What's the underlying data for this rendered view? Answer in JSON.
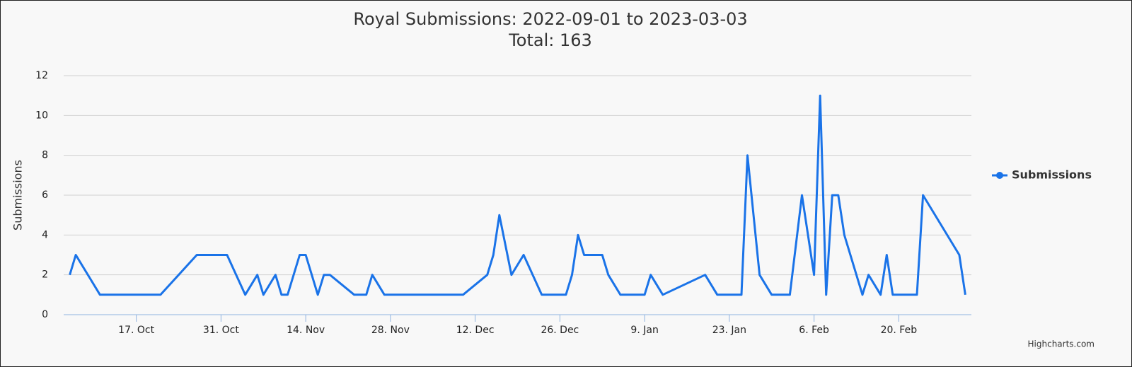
{
  "chart_data": {
    "type": "line",
    "title": "Royal Submissions: 2022-09-01 to 2023-03-03",
    "subtitle": "Total: 163",
    "y_label": "Submissions",
    "credits": "Highcharts.com",
    "grid": true,
    "legend": "right",
    "xlim": [
      "2022-10-05",
      "2023-03-04"
    ],
    "ylim": [
      0,
      12
    ],
    "yticks": [
      0,
      2,
      4,
      6,
      8,
      10,
      12
    ],
    "xticks": [
      {
        "value": "2022-10-17",
        "label": "17. Oct"
      },
      {
        "value": "2022-10-31",
        "label": "31. Oct"
      },
      {
        "value": "2022-11-14",
        "label": "14. Nov"
      },
      {
        "value": "2022-11-28",
        "label": "28. Nov"
      },
      {
        "value": "2022-12-12",
        "label": "12. Dec"
      },
      {
        "value": "2022-12-26",
        "label": "26. Dec"
      },
      {
        "value": "2023-01-09",
        "label": "9. Jan"
      },
      {
        "value": "2023-01-23",
        "label": "23. Jan"
      },
      {
        "value": "2023-02-06",
        "label": "6. Feb"
      },
      {
        "value": "2023-02-20",
        "label": "20. Feb"
      }
    ],
    "x": [
      "2022-10-06",
      "2022-10-07",
      "2022-10-11",
      "2022-10-21",
      "2022-10-27",
      "2022-11-01",
      "2022-11-04",
      "2022-11-06",
      "2022-11-07",
      "2022-11-09",
      "2022-11-10",
      "2022-11-11",
      "2022-11-13",
      "2022-11-14",
      "2022-11-16",
      "2022-11-17",
      "2022-11-18",
      "2022-11-22",
      "2022-11-24",
      "2022-11-25",
      "2022-11-27",
      "2022-12-10",
      "2022-12-14",
      "2022-12-15",
      "2022-12-16",
      "2022-12-18",
      "2022-12-20",
      "2022-12-23",
      "2022-12-27",
      "2022-12-28",
      "2022-12-29",
      "2022-12-30",
      "2023-01-02",
      "2023-01-03",
      "2023-01-05",
      "2023-01-09",
      "2023-01-10",
      "2023-01-12",
      "2023-01-19",
      "2023-01-21",
      "2023-01-25",
      "2023-01-26",
      "2023-01-28",
      "2023-01-30",
      "2023-02-02",
      "2023-02-04",
      "2023-02-06",
      "2023-02-07",
      "2023-02-08",
      "2023-02-09",
      "2023-02-10",
      "2023-02-11",
      "2023-02-14",
      "2023-02-15",
      "2023-02-17",
      "2023-02-18",
      "2023-02-19",
      "2023-02-23",
      "2023-02-24",
      "2023-03-02",
      "2023-03-03"
    ],
    "series": [
      {
        "name": "Submissions",
        "color": "#1a73e8",
        "values": [
          2,
          3,
          1,
          1,
          3,
          3,
          1,
          2,
          1,
          2,
          1,
          1,
          3,
          3,
          1,
          2,
          2,
          1,
          1,
          2,
          1,
          1,
          2,
          3,
          5,
          2,
          3,
          1,
          1,
          2,
          4,
          3,
          3,
          2,
          1,
          1,
          2,
          1,
          2,
          1,
          1,
          8,
          2,
          1,
          1,
          6,
          2,
          11,
          1,
          6,
          6,
          4,
          1,
          2,
          1,
          3,
          1,
          1,
          6,
          3,
          1
        ]
      }
    ]
  }
}
